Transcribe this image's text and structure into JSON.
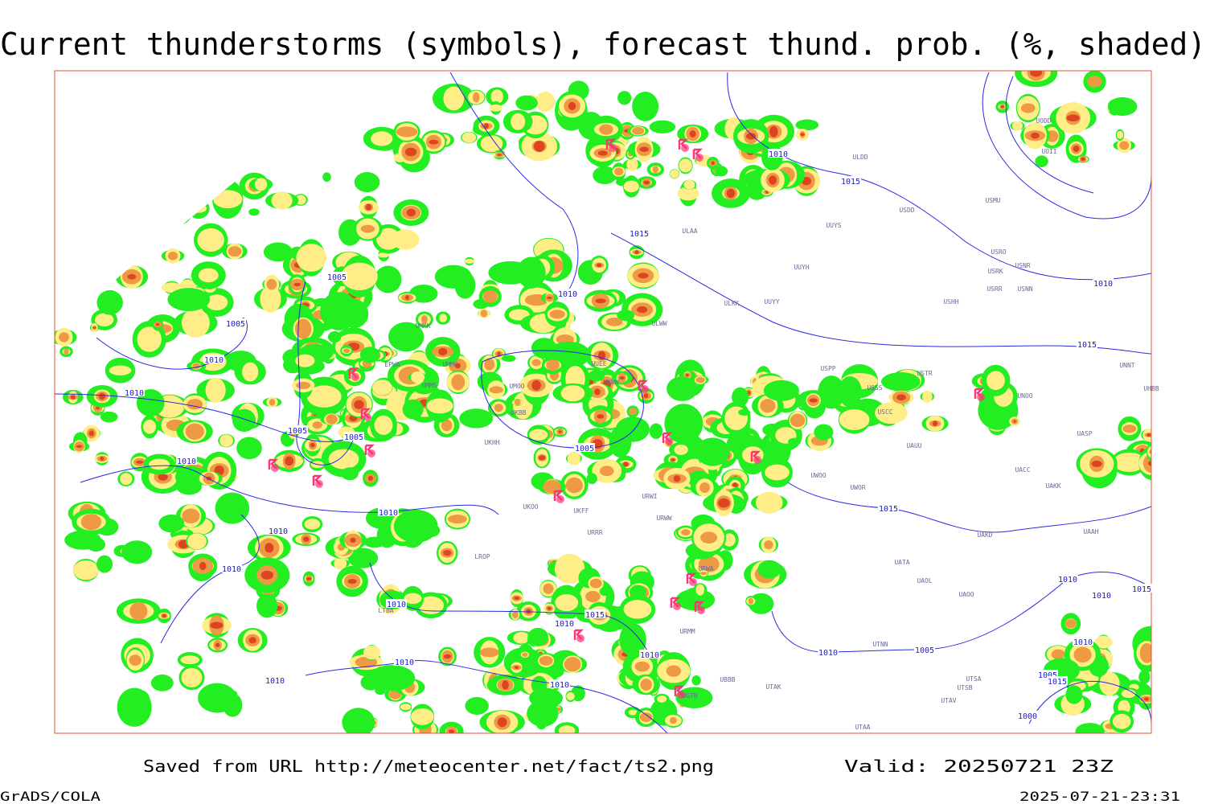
{
  "header": {
    "title": "Current thunderstorms (symbols), forecast thund. prob. (%, shaded)"
  },
  "footer": {
    "source": "Saved from URL http://meteocenter.net/fact/ts2.png",
    "valid": "Valid: 20250721 23Z",
    "credit": "GrADS/COLA",
    "timestamp": "2025-07-21-23:31"
  },
  "isobar_labels": [
    "1010",
    "1015",
    "1015",
    "1005",
    "1010",
    "1005",
    "1010",
    "1010",
    "1005",
    "1005",
    "1005",
    "1010",
    "1010",
    "1010",
    "1010",
    "1010",
    "1015",
    "1010",
    "1015",
    "1015",
    "1010",
    "1010",
    "1010",
    "1005",
    "1010",
    "1010",
    "1015",
    "1010",
    "1005",
    "1015",
    "1000",
    "1010",
    "1010",
    "1010"
  ],
  "station_labels": [
    "ULDD",
    "UUYS",
    "ULAA",
    "UUYH",
    "UUYY",
    "ULKK",
    "USHH",
    "USDD",
    "USMU",
    "UOII",
    "UODD",
    "USRO",
    "USRK",
    "USNR",
    "USRR",
    "USNN",
    "UNNT",
    "UHBB",
    "USTR",
    "USSS",
    "UNOO",
    "USCC",
    "UAUU",
    "UASP",
    "UACC",
    "UAKK",
    "UWOO",
    "UWOR",
    "UAKD",
    "UAAH",
    "UATA",
    "UAOL",
    "UAOO",
    "UTNN",
    "UTSA",
    "UTSB",
    "UTAV",
    "UTAA",
    "UTAK",
    "ULWW",
    "USPP",
    "UMKK",
    "EPWA",
    "UMMG",
    "UMMS",
    "UMOO",
    "UKBB",
    "UKHH",
    "UKWW",
    "URRR",
    "URWA",
    "URMM",
    "UGTB",
    "UBBB",
    "LTBA",
    "LROP",
    "UKFF",
    "UKOO",
    "UUEE",
    "URWW",
    "URWI"
  ]
}
